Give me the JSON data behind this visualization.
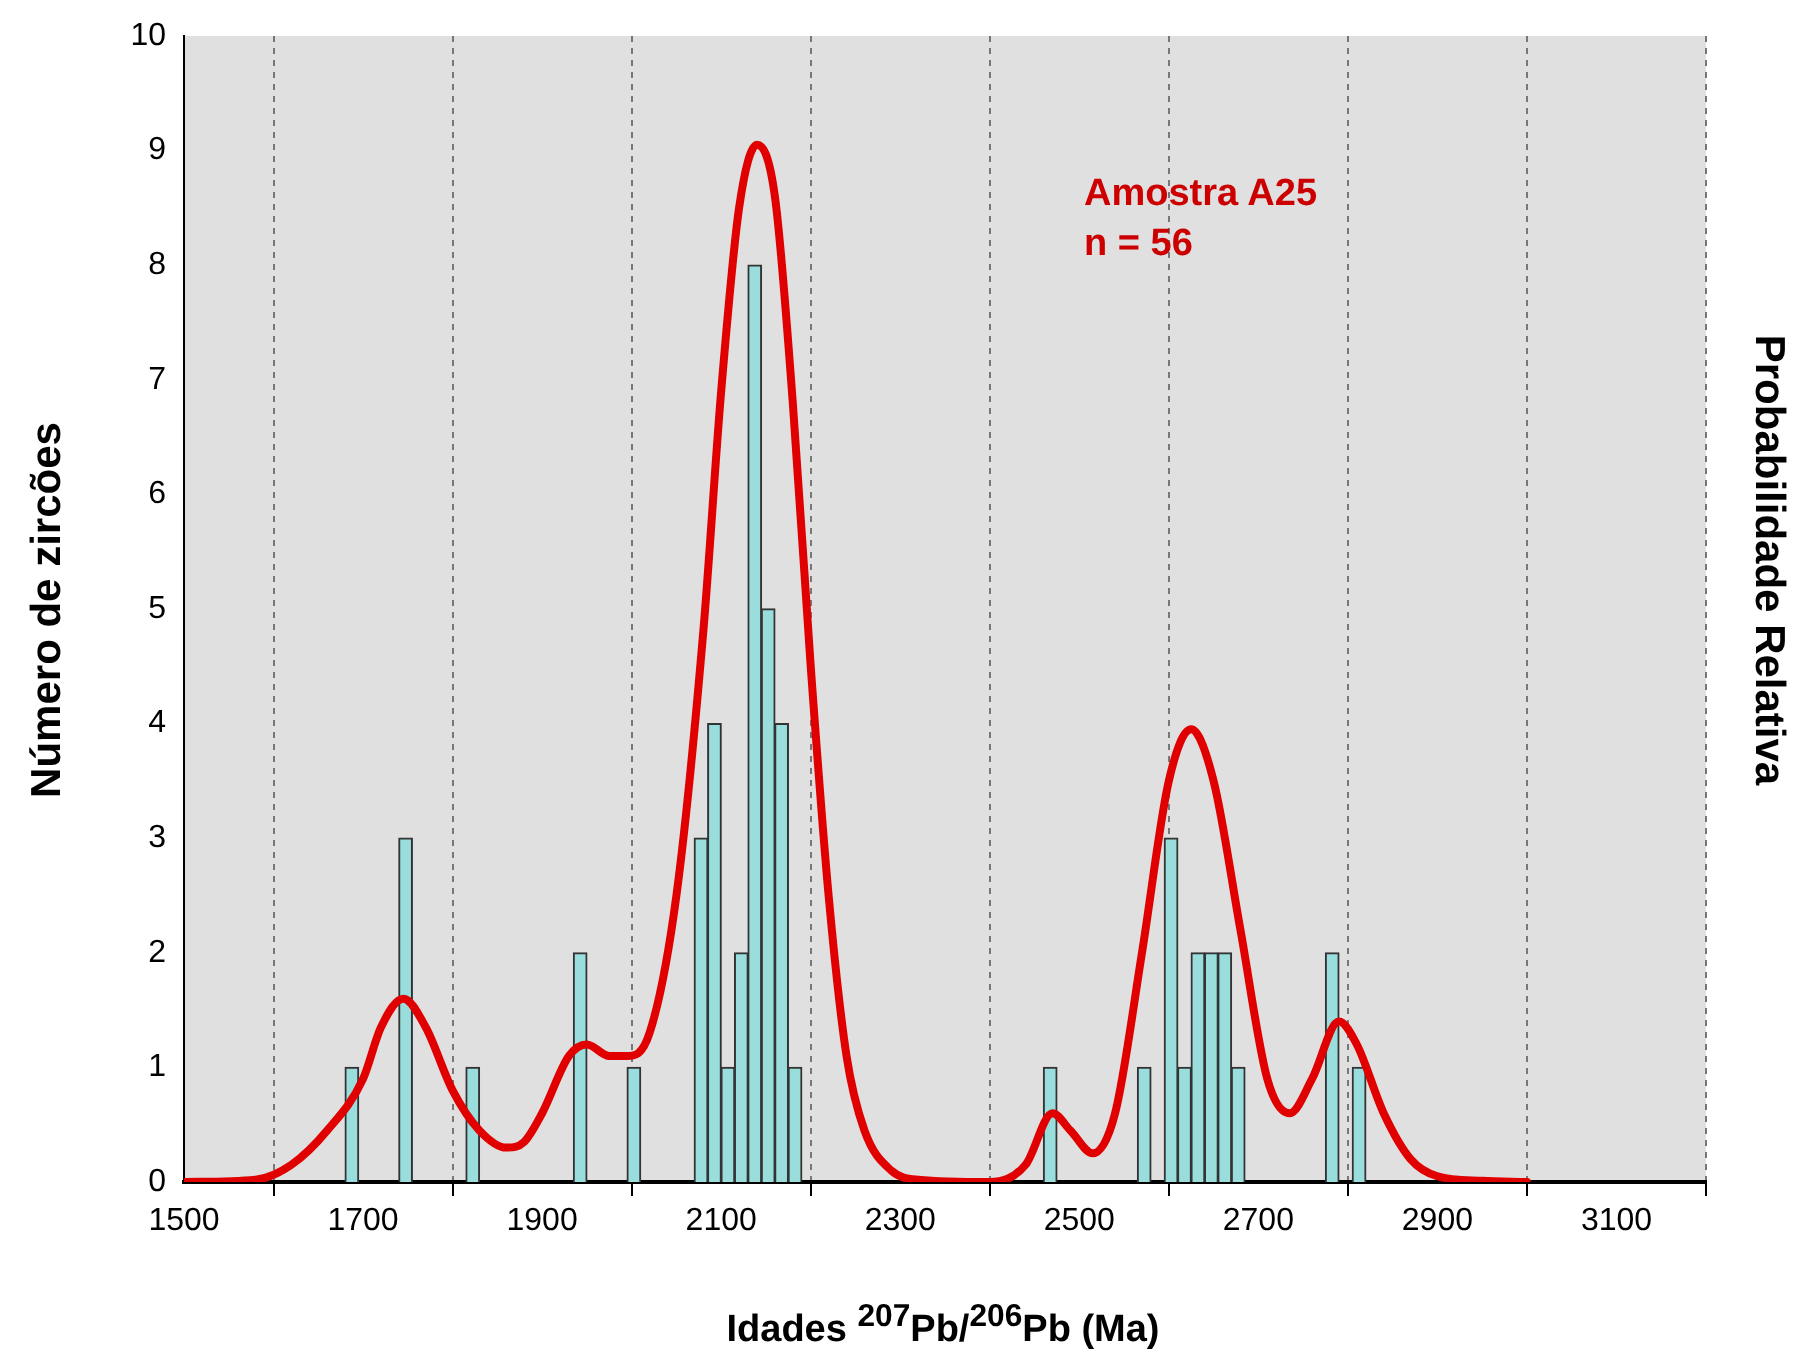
{
  "chart_data": {
    "type": "histogram",
    "xlabel": "Idades $^{207}$Pb/$^{206}$Pb (Ma)",
    "ylabel": "Número  de zircões",
    "y2label": "Probabilidade Relativa",
    "annotations": [
      "Amostra A25",
      "n = 56"
    ],
    "bins": [
      1680,
      1695,
      1710,
      1725,
      1740,
      1755,
      1770,
      1785,
      1800,
      1815,
      1830,
      1845,
      1860,
      1875,
      1890,
      1905,
      1920,
      1935,
      1950,
      1965,
      1980,
      1995,
      2010,
      2025,
      2040,
      2055,
      2070,
      2085,
      2100,
      2115,
      2130,
      2145,
      2160,
      2175,
      2190,
      2205,
      2220,
      2235,
      2250,
      2265,
      2280,
      2295,
      2310,
      2325,
      2340,
      2355,
      2370,
      2385,
      2400,
      2415,
      2430,
      2445,
      2460,
      2475,
      2490,
      2505,
      2520,
      2535,
      2550,
      2565,
      2580,
      2595,
      2610,
      2625,
      2640,
      2655,
      2670,
      2685,
      2700,
      2715,
      2730,
      2745,
      2760,
      2775,
      2790,
      2805,
      2820
    ],
    "values": [
      1,
      0,
      0,
      0,
      3,
      0,
      0,
      0,
      0,
      1,
      0,
      0,
      0,
      0,
      0,
      0,
      0,
      2,
      0,
      0,
      0,
      1,
      0,
      0,
      0,
      0,
      3,
      4,
      1,
      2,
      8,
      5,
      4,
      1,
      0,
      0,
      0,
      0,
      0,
      0,
      0,
      0,
      0,
      0,
      0,
      0,
      0,
      0,
      0,
      0,
      0,
      0,
      1,
      0,
      0,
      0,
      0,
      0,
      0,
      1,
      0,
      3,
      1,
      2,
      2,
      2,
      1,
      0,
      0,
      0,
      0,
      0,
      0,
      2,
      0,
      1
    ],
    "color": "#99dddd",
    "series": [
      {
        "type": "line",
        "color": "#e00000",
        "x": [
          1500,
          1580,
          1620,
          1660,
          1700,
          1720,
          1745,
          1770,
          1800,
          1830,
          1860,
          1880,
          1900,
          1930,
          1950,
          1975,
          1995,
          2020,
          2050,
          2080,
          2100,
          2120,
          2140,
          2160,
          2180,
          2200,
          2220,
          2240,
          2260,
          2290,
          2320,
          2400,
          2440,
          2470,
          2490,
          2515,
          2540,
          2570,
          2600,
          2625,
          2650,
          2680,
          2710,
          2735,
          2760,
          2790,
          2810,
          2840,
          2870,
          2900,
          2950,
          3000
        ],
        "values": [
          0,
          0.02,
          0.15,
          0.45,
          0.9,
          1.35,
          1.6,
          1.35,
          0.8,
          0.45,
          0.3,
          0.35,
          0.6,
          1.1,
          1.2,
          1.1,
          1.1,
          1.3,
          2.5,
          4.8,
          6.9,
          8.5,
          9.05,
          8.6,
          6.8,
          4.5,
          2.5,
          1.1,
          0.45,
          0.1,
          0.02,
          0,
          0.15,
          0.6,
          0.45,
          0.25,
          0.6,
          2,
          3.5,
          3.95,
          3.5,
          2.2,
          0.9,
          0.6,
          0.9,
          1.4,
          1.2,
          0.6,
          0.2,
          0.05,
          0.01,
          0
        ]
      }
    ],
    "xlim": [
      1500,
      3200
    ],
    "xticks": [
      1500,
      1700,
      1900,
      2100,
      2300,
      2500,
      2700,
      2900,
      3100
    ],
    "ylim": [
      0,
      10
    ],
    "yticks": [
      0,
      1,
      2,
      3,
      4,
      5,
      6,
      7,
      8,
      9,
      10
    ],
    "grid": "x",
    "marker": "none",
    "line_style": "solid"
  }
}
